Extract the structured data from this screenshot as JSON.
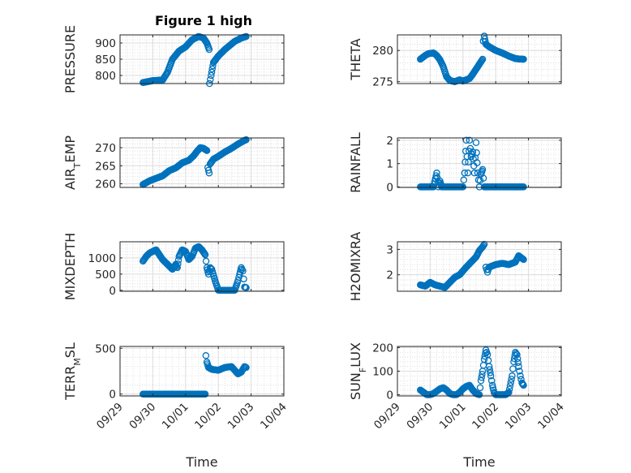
{
  "figure_title": "Figure 1 high",
  "chart_data": [
    {
      "id": "pressure",
      "type": "scatter",
      "ylabel": "PRESSURE",
      "xlabel": "",
      "ylim": [
        775,
        925
      ],
      "yticks": [
        800,
        850,
        900
      ],
      "xlim": [
        "09/29",
        "10/04"
      ],
      "xticks": [
        "09/29",
        "09/30",
        "10/01",
        "10/02",
        "10/03",
        "10/04"
      ],
      "show_xtick_labels": false,
      "grid": true,
      "marker": "circle",
      "marker_color": "#0072BD",
      "segments": [
        {
          "x": [
            0.7,
            1.0,
            1.3,
            1.45,
            1.6,
            1.8,
            2.0,
            2.2,
            2.4,
            2.55,
            2.65,
            2.72
          ],
          "y": [
            778,
            784,
            786,
            810,
            850,
            875,
            888,
            910,
            920,
            915,
            900,
            880
          ]
        },
        {
          "x": [
            2.73,
            2.78,
            2.85,
            3.0,
            3.2,
            3.5,
            3.7,
            3.85
          ],
          "y": [
            775,
            800,
            840,
            860,
            880,
            905,
            915,
            920
          ]
        }
      ]
    },
    {
      "id": "theta",
      "type": "scatter",
      "ylabel": "THETA",
      "xlabel": "",
      "ylim": [
        274.7,
        282.5
      ],
      "yticks": [
        275,
        280
      ],
      "xlim": [
        "09/29",
        "10/04"
      ],
      "xticks": [
        "09/29",
        "09/30",
        "10/01",
        "10/02",
        "10/03",
        "10/04"
      ],
      "show_xtick_labels": false,
      "grid": true,
      "marker": "circle",
      "marker_color": "#0072BD",
      "segments": [
        {
          "x": [
            0.7,
            0.85,
            0.95,
            1.1,
            1.2,
            1.3,
            1.4,
            1.5,
            1.6,
            1.75,
            1.9,
            2.0,
            2.2,
            2.3,
            2.4,
            2.5,
            2.6
          ],
          "y": [
            278.6,
            279.2,
            279.5,
            279.6,
            279.2,
            278.5,
            277.4,
            275.8,
            275.2,
            275.0,
            275.3,
            275.1,
            275.5,
            276.2,
            277.0,
            277.8,
            278.6
          ]
        },
        {
          "x": [
            2.62,
            2.65,
            2.7,
            2.8,
            3.0,
            3.2,
            3.4,
            3.6,
            3.8,
            3.85
          ],
          "y": [
            281.5,
            282.3,
            281.0,
            280.6,
            280.0,
            279.6,
            279.1,
            278.7,
            278.6,
            278.6
          ]
        }
      ]
    },
    {
      "id": "air_temp",
      "type": "scatter",
      "ylabel_main": "AIR",
      "ylabel_sub": "T",
      "ylabel_tail": "EMP",
      "xlabel": "",
      "ylim": [
        259,
        272.7
      ],
      "yticks": [
        260,
        265,
        270
      ],
      "xlim": [
        "09/29",
        "10/04"
      ],
      "xticks": [
        "09/29",
        "09/30",
        "10/01",
        "10/02",
        "10/03",
        "10/04"
      ],
      "show_xtick_labels": false,
      "grid": true,
      "marker": "circle",
      "marker_color": "#0072BD",
      "segments": [
        {
          "x": [
            0.7,
            0.9,
            1.1,
            1.3,
            1.5,
            1.7,
            1.9,
            2.1,
            2.25,
            2.35,
            2.45,
            2.55,
            2.65
          ],
          "y": [
            259.8,
            260.8,
            261.5,
            262.2,
            263.6,
            264.4,
            265.8,
            266.5,
            267.8,
            269.0,
            270.0,
            269.8,
            269.2
          ]
        },
        {
          "x": [
            2.68,
            2.72,
            2.75,
            2.85,
            3.0,
            3.2,
            3.4,
            3.6,
            3.8,
            3.85
          ],
          "y": [
            264.5,
            263.0,
            265.5,
            266.8,
            267.6,
            268.8,
            269.8,
            271.0,
            272.0,
            272.2
          ]
        }
      ]
    },
    {
      "id": "rainfall",
      "type": "scatter",
      "ylabel": "RAINFALL",
      "xlabel": "",
      "ylim": [
        -0.02,
        2.1
      ],
      "yticks": [
        0,
        1,
        2
      ],
      "xlim": [
        "09/29",
        "10/04"
      ],
      "xticks": [
        "09/29",
        "09/30",
        "10/01",
        "10/02",
        "10/03",
        "10/04"
      ],
      "show_xtick_labels": false,
      "grid": true,
      "marker": "circle",
      "marker_color": "#0072BD",
      "segments": [
        {
          "x": [
            0.7,
            1.1,
            1.2,
            1.25,
            1.3,
            1.35,
            1.5,
            1.8,
            2.0,
            2.05,
            2.1,
            2.15,
            2.2,
            2.25,
            2.3,
            2.35,
            2.4,
            2.45,
            2.5,
            2.55,
            2.6,
            2.65,
            2.7,
            3.0,
            3.5,
            3.85
          ],
          "y": [
            0,
            0,
            0.6,
            0,
            0.25,
            0,
            0,
            0,
            0,
            0.6,
            2.0,
            0.6,
            2.0,
            1.3,
            1.5,
            0.6,
            1.9,
            0.6,
            0,
            0.55,
            0.75,
            0,
            0,
            0,
            0,
            0
          ]
        }
      ]
    },
    {
      "id": "mixdepth",
      "type": "scatter",
      "ylabel": "MIXDEPTH",
      "xlabel": "",
      "ylim": [
        -30,
        1500
      ],
      "yticks": [
        0,
        500,
        1000
      ],
      "xlim": [
        "09/29",
        "10/04"
      ],
      "xticks": [
        "09/29",
        "09/30",
        "10/01",
        "10/02",
        "10/03",
        "10/04"
      ],
      "show_xtick_labels": false,
      "grid": true,
      "marker": "circle",
      "marker_color": "#0072BD",
      "segments": [
        {
          "x": [
            0.7,
            0.8,
            0.9,
            1.0,
            1.1,
            1.2,
            1.3,
            1.4,
            1.5,
            1.6,
            1.7,
            1.75,
            1.8,
            1.9,
            2.0,
            2.1,
            2.2,
            2.3,
            2.4,
            2.5,
            2.6,
            2.65,
            2.7,
            2.75,
            2.8,
            2.9,
            3.0,
            3.2,
            3.4,
            3.5,
            3.6,
            3.65,
            3.7,
            3.75,
            3.8,
            3.85
          ],
          "y": [
            900,
            1050,
            1150,
            1200,
            1250,
            1100,
            950,
            850,
            750,
            650,
            800,
            700,
            1050,
            1250,
            1200,
            950,
            1050,
            1300,
            1350,
            1250,
            1100,
            700,
            500,
            700,
            650,
            300,
            0,
            0,
            0,
            0,
            300,
            500,
            700,
            600,
            100,
            80
          ]
        }
      ]
    },
    {
      "id": "h2omixra",
      "type": "scatter",
      "ylabel": "H2OMIXRA",
      "xlabel": "",
      "ylim": [
        1.35,
        3.3
      ],
      "yticks": [
        2,
        3
      ],
      "xlim": [
        "09/29",
        "10/04"
      ],
      "xticks": [
        "09/29",
        "09/30",
        "10/01",
        "10/02",
        "10/03",
        "10/04"
      ],
      "show_xtick_labels": false,
      "grid": true,
      "marker": "circle",
      "marker_color": "#0072BD",
      "segments": [
        {
          "x": [
            0.7,
            0.85,
            1.0,
            1.15,
            1.3,
            1.45,
            1.6,
            1.75,
            1.9,
            2.1,
            2.25,
            2.4,
            2.5,
            2.6,
            2.65
          ],
          "y": [
            1.6,
            1.55,
            1.7,
            1.6,
            1.55,
            1.5,
            1.7,
            1.9,
            2.0,
            2.3,
            2.5,
            2.7,
            2.95,
            3.1,
            3.2
          ]
        },
        {
          "x": [
            2.7,
            2.75,
            2.8,
            3.0,
            3.2,
            3.4,
            3.6,
            3.7,
            3.85
          ],
          "y": [
            2.3,
            2.1,
            2.3,
            2.4,
            2.45,
            2.4,
            2.5,
            2.75,
            2.6
          ]
        }
      ]
    },
    {
      "id": "terr_msl",
      "type": "scatter",
      "ylabel_main": "TERR",
      "ylabel_sub": "M",
      "ylabel_tail": "SL",
      "xlabel": "Time",
      "ylim": [
        -20,
        520
      ],
      "yticks": [
        0,
        500
      ],
      "xlim": [
        "09/29",
        "10/04"
      ],
      "xticks": [
        "09/29",
        "09/30",
        "10/01",
        "10/02",
        "10/03",
        "10/04"
      ],
      "show_xtick_labels": true,
      "grid": true,
      "marker": "circle",
      "marker_color": "#0072BD",
      "segments": [
        {
          "x": [
            0.7,
            1.0,
            1.3,
            1.6,
            1.9,
            2.2,
            2.45,
            2.6
          ],
          "y": [
            0,
            0,
            0,
            0,
            0,
            0,
            0,
            0
          ]
        },
        {
          "x": [
            2.62,
            2.65,
            2.7,
            2.8,
            3.0,
            3.2,
            3.4,
            3.5,
            3.6,
            3.7,
            3.8,
            3.85
          ],
          "y": [
            420,
            350,
            290,
            270,
            260,
            290,
            300,
            260,
            220,
            240,
            300,
            290
          ]
        }
      ]
    },
    {
      "id": "sun_flux",
      "type": "scatter",
      "ylabel_main": "SUN",
      "ylabel_sub": "F",
      "ylabel_tail": "LUX",
      "xlabel": "Time",
      "ylim": [
        -5,
        205
      ],
      "yticks": [
        0,
        100,
        200
      ],
      "xlim": [
        "09/29",
        "10/04"
      ],
      "xticks": [
        "09/29",
        "09/30",
        "10/01",
        "10/02",
        "10/03",
        "10/04"
      ],
      "show_xtick_labels": true,
      "grid": true,
      "marker": "circle",
      "marker_color": "#0072BD",
      "segments": [
        {
          "x": [
            0.7,
            0.8,
            0.9,
            1.0,
            1.1,
            1.2,
            1.3,
            1.4,
            1.5,
            1.6,
            1.7,
            1.8,
            1.9,
            2.0,
            2.1,
            2.2,
            2.3,
            2.4,
            2.5,
            2.55,
            2.6,
            2.65,
            2.7,
            2.75,
            2.8,
            2.85,
            2.9,
            2.95,
            3.0,
            3.1,
            3.2,
            3.3,
            3.4,
            3.5,
            3.55,
            3.6,
            3.65,
            3.7,
            3.75,
            3.8,
            3.85
          ],
          "y": [
            20,
            10,
            0,
            0,
            5,
            15,
            25,
            30,
            20,
            5,
            0,
            0,
            10,
            25,
            35,
            40,
            20,
            5,
            0,
            60,
            100,
            150,
            190,
            170,
            120,
            80,
            40,
            10,
            0,
            0,
            0,
            0,
            10,
            80,
            140,
            180,
            170,
            120,
            80,
            50,
            40
          ]
        }
      ]
    }
  ]
}
